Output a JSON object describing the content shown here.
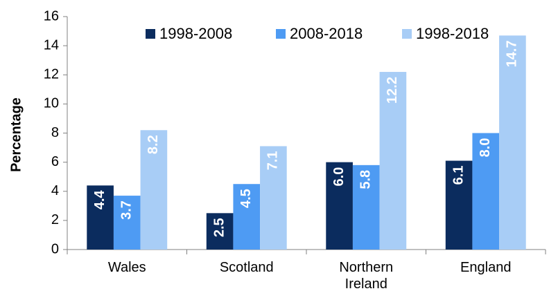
{
  "chart_data": {
    "type": "bar",
    "y_label": "Percentage",
    "categories": [
      "Wales",
      "Scotland",
      "Northern Ireland",
      "England"
    ],
    "series": [
      {
        "name": "1998-2008",
        "color": "#0b2c5e",
        "values": [
          4.4,
          2.5,
          6.0,
          6.1
        ],
        "value_labels": [
          "4.4",
          "2.5",
          "6.0",
          "6.1"
        ]
      },
      {
        "name": "2008-2018",
        "color": "#4e9bf3",
        "values": [
          3.7,
          4.5,
          5.8,
          8.0
        ],
        "value_labels": [
          "3.7",
          "4.5",
          "5.8",
          "8.0"
        ]
      },
      {
        "name": "1998-2018",
        "color": "#a8cdf6",
        "values": [
          8.2,
          7.1,
          12.2,
          14.7
        ],
        "value_labels": [
          "8.2",
          "7.1",
          "12.2",
          "14.7"
        ]
      }
    ],
    "ylim": [
      0,
      16
    ],
    "yticks": [
      0,
      2,
      4,
      6,
      8,
      10,
      12,
      14,
      16
    ],
    "legend": "top"
  }
}
